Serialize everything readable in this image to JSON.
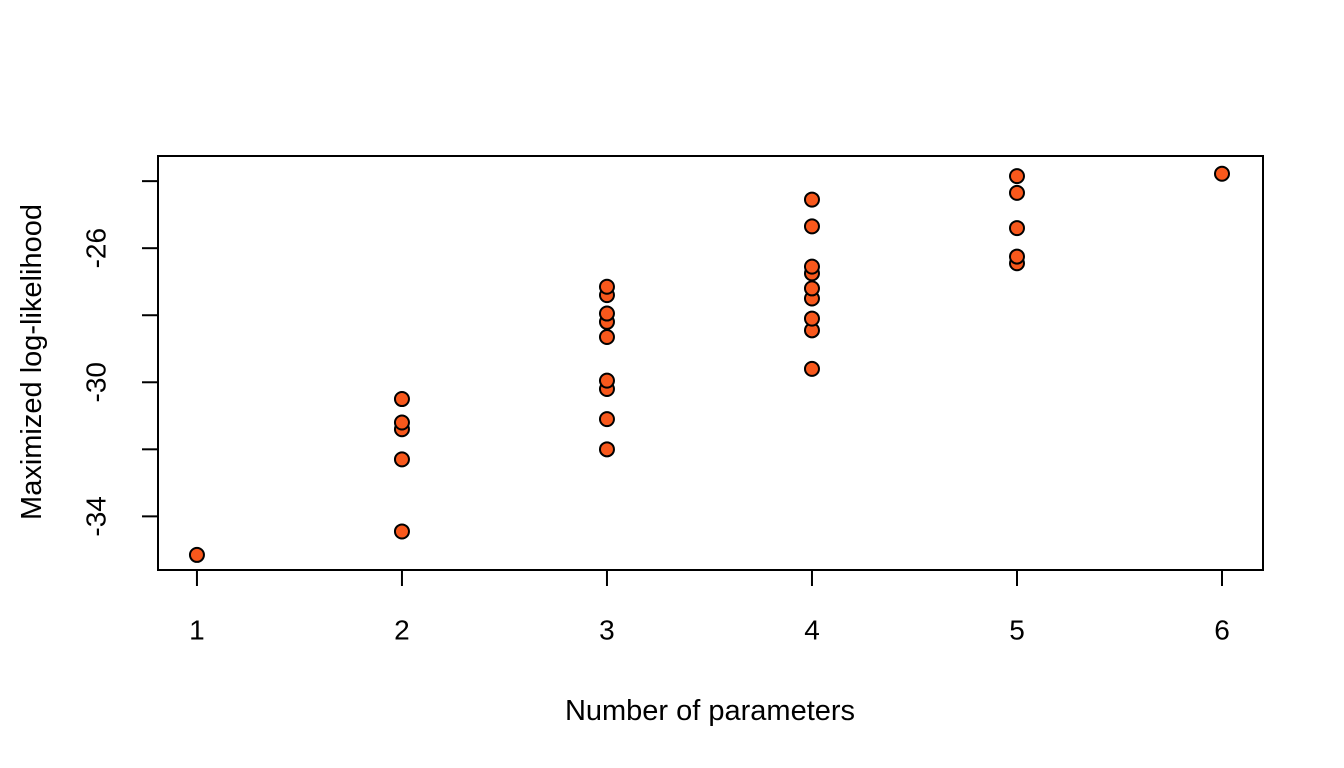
{
  "figure": {
    "background": "#FFFFFF"
  },
  "chart_data": {
    "type": "scatter",
    "title": "",
    "xlabel": "Number of parameters",
    "ylabel": "Maximized log-likelihood",
    "xlim": [
      0.81,
      6.2
    ],
    "ylim": [
      -35.6,
      -23.25
    ],
    "x_ticks": [
      1,
      2,
      3,
      4,
      5,
      6
    ],
    "x_tick_labels": [
      "1",
      "2",
      "3",
      "4",
      "5",
      "6"
    ],
    "y_ticks": [
      -34,
      -32,
      -30,
      -28,
      -26,
      -24
    ],
    "y_tick_labels": [
      "-34",
      "",
      "-30",
      "",
      "-26",
      ""
    ],
    "grid": false,
    "legend": false,
    "axis_color": "#000000",
    "point_style": {
      "fill": "#F8581C",
      "stroke": "#000000",
      "radius": 7,
      "stroke_width": 2
    },
    "points": [
      [
        1,
        -35.15
      ],
      [
        2,
        -30.5
      ],
      [
        2,
        -31.2
      ],
      [
        2,
        -31.4
      ],
      [
        2,
        -32.3
      ],
      [
        2,
        -34.45
      ],
      [
        3,
        -27.15
      ],
      [
        3,
        -27.4
      ],
      [
        3,
        -27.95
      ],
      [
        3,
        -28.2
      ],
      [
        3,
        -28.65
      ],
      [
        3,
        -29.95
      ],
      [
        3,
        -30.2
      ],
      [
        3,
        -31.1
      ],
      [
        3,
        -32.0
      ],
      [
        4,
        -24.55
      ],
      [
        4,
        -25.35
      ],
      [
        4,
        -26.55
      ],
      [
        4,
        -26.75
      ],
      [
        4,
        -27.2
      ],
      [
        4,
        -27.5
      ],
      [
        4,
        -28.1
      ],
      [
        4,
        -28.45
      ],
      [
        4,
        -29.6
      ],
      [
        5,
        -23.85
      ],
      [
        5,
        -24.35
      ],
      [
        5,
        -25.4
      ],
      [
        5,
        -26.25
      ],
      [
        5,
        -26.45
      ],
      [
        6,
        -23.78
      ]
    ]
  }
}
